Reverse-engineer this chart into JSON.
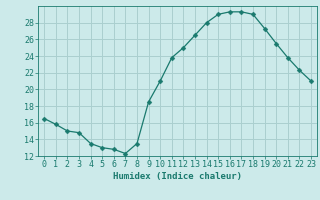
{
  "x": [
    0,
    1,
    2,
    3,
    4,
    5,
    6,
    7,
    8,
    9,
    10,
    11,
    12,
    13,
    14,
    15,
    16,
    17,
    18,
    19,
    20,
    21,
    22,
    23
  ],
  "y": [
    16.5,
    15.8,
    15.0,
    14.8,
    13.5,
    13.0,
    12.8,
    12.3,
    13.5,
    18.5,
    21.0,
    23.8,
    25.0,
    26.5,
    28.0,
    29.0,
    29.3,
    29.3,
    29.0,
    27.3,
    25.5,
    23.8,
    22.3,
    21.0
  ],
  "line_color": "#1a7a6e",
  "marker": "D",
  "marker_size": 2.5,
  "bg_color": "#cceaea",
  "grid_color": "#aacfcf",
  "xlabel": "Humidex (Indice chaleur)",
  "ylim": [
    12,
    30
  ],
  "xlim": [
    -0.5,
    23.5
  ],
  "yticks": [
    12,
    14,
    16,
    18,
    20,
    22,
    24,
    26,
    28
  ],
  "xticks": [
    0,
    1,
    2,
    3,
    4,
    5,
    6,
    7,
    8,
    9,
    10,
    11,
    12,
    13,
    14,
    15,
    16,
    17,
    18,
    19,
    20,
    21,
    22,
    23
  ],
  "label_fontsize": 6.5,
  "tick_fontsize": 6
}
